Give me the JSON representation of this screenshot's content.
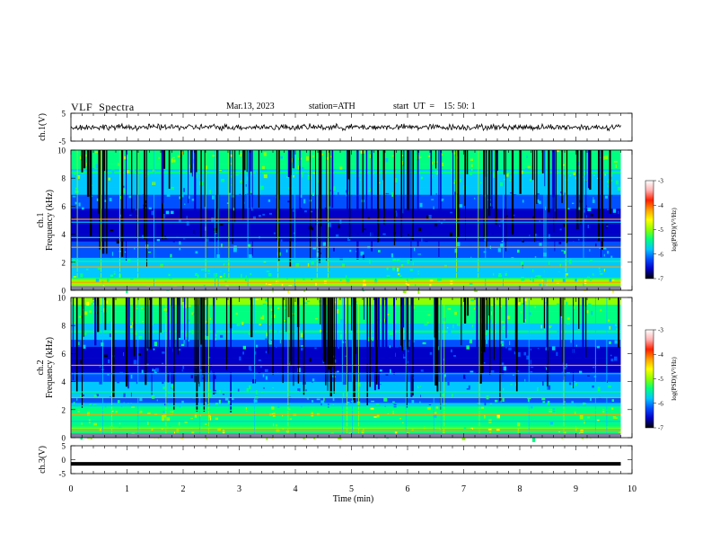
{
  "header": {
    "title": "VLF  Spectra",
    "date": "Mar.13, 2023",
    "station": "station=ATH",
    "start_ut": "start  UT  =    15: 50: 1"
  },
  "chart_data": [
    {
      "type": "line",
      "ylabel": "ch.1(V)",
      "ylim": [
        -5,
        5
      ],
      "yticks": [
        5,
        -5
      ],
      "xlim": [
        0,
        10
      ],
      "series": [
        {
          "x_range": [
            0,
            9.8
          ],
          "y_mean": 0.0,
          "y_noise": 0.9
        }
      ]
    },
    {
      "type": "heatmap",
      "ylabel": "ch.1\nFrequency  (kHz)",
      "ylim": [
        0,
        10
      ],
      "yticks": [
        0,
        2,
        4,
        6,
        8,
        10
      ],
      "xlim": [
        0,
        10
      ],
      "x_data_range": [
        0,
        9.8
      ],
      "colorbar": {
        "label": "log(PSD)(V²/Hz)",
        "min": -7,
        "max": -3,
        "ticks": [
          -3,
          -4,
          -5,
          -6,
          -7
        ]
      }
    },
    {
      "type": "heatmap",
      "ylabel": "ch.2\nFrequency  (kHz)",
      "ylim": [
        0,
        10
      ],
      "yticks": [
        0,
        2,
        4,
        6,
        8,
        10
      ],
      "xlim": [
        0,
        10
      ],
      "x_data_range": [
        0,
        9.8
      ],
      "colorbar": {
        "label": "log(PSD)(V²/Hz)",
        "min": -7,
        "max": -3,
        "ticks": [
          -3,
          -4,
          -5,
          -6,
          -7
        ]
      }
    },
    {
      "type": "line",
      "ylabel": "ch.3(V)",
      "ylim": [
        -5,
        5
      ],
      "yticks": [
        5,
        0,
        -5
      ],
      "xlim": [
        0,
        10
      ],
      "xlabel": "Time  (min)",
      "xticks": [
        0,
        1,
        2,
        3,
        4,
        5,
        6,
        7,
        8,
        9,
        10
      ],
      "series": [
        {
          "x_range": [
            0,
            9.8
          ],
          "y_value": -1.5
        }
      ]
    }
  ],
  "colors": {
    "colormap": [
      "#000000",
      "#0000c8",
      "#0050ff",
      "#00c8ff",
      "#00ff80",
      "#90ff00",
      "#ffff00",
      "#ffa000",
      "#ff2000",
      "#ffb0b0",
      "#ffffff"
    ]
  }
}
